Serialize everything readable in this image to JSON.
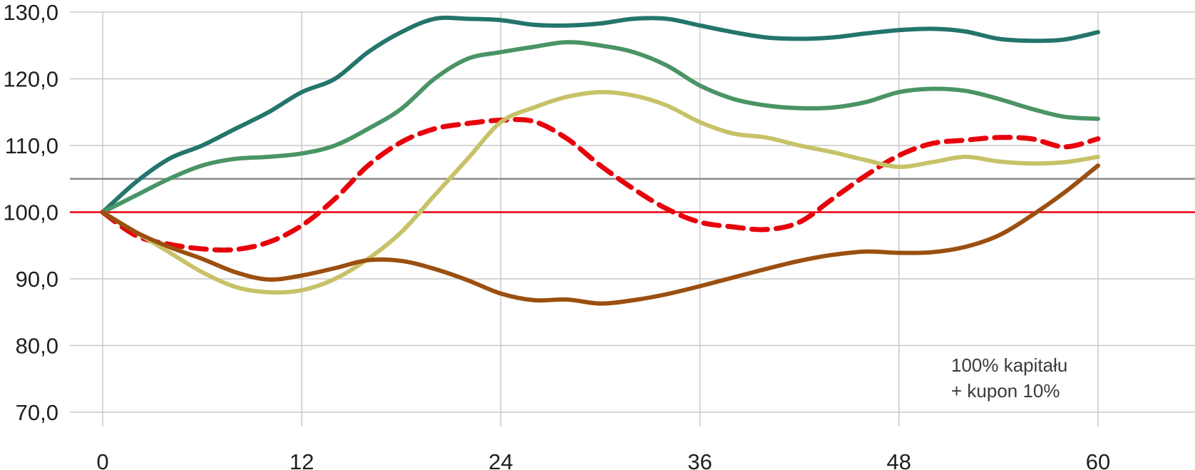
{
  "chart_data": {
    "type": "line",
    "title": "",
    "xlabel": "",
    "ylabel": "",
    "xlim": [
      0,
      65
    ],
    "ylim": [
      70,
      130
    ],
    "x_ticks": [
      0,
      12,
      24,
      36,
      48,
      60
    ],
    "y_ticks": [
      {
        "value": 70,
        "label": "70,0"
      },
      {
        "value": 80,
        "label": "80,0"
      },
      {
        "value": 90,
        "label": "90,0"
      },
      {
        "value": 100,
        "label": "100,0"
      },
      {
        "value": 110,
        "label": "110,0"
      },
      {
        "value": 120,
        "label": "120,0"
      },
      {
        "value": 130,
        "label": "130,0"
      }
    ],
    "grid": true,
    "reference_lines": [
      {
        "value": 100,
        "color": "#e8000b"
      },
      {
        "value": 105,
        "color": "#8c8c8c"
      }
    ],
    "annotation": [
      "100% kapitału",
      "+ kupon 10%"
    ],
    "series": [
      {
        "color": "#24756b",
        "dashed": false,
        "points": [
          [
            0,
            100
          ],
          [
            2,
            104.5
          ],
          [
            4,
            108
          ],
          [
            6,
            110
          ],
          [
            8,
            112.5
          ],
          [
            10,
            115
          ],
          [
            12,
            118
          ],
          [
            14,
            120
          ],
          [
            16,
            124
          ],
          [
            18,
            127
          ],
          [
            20,
            129
          ],
          [
            22,
            129
          ],
          [
            24,
            128.8
          ],
          [
            26,
            128.1
          ],
          [
            28,
            128
          ],
          [
            30,
            128.3
          ],
          [
            32,
            129
          ],
          [
            34,
            129
          ],
          [
            36,
            128
          ],
          [
            38,
            127
          ],
          [
            40,
            126.2
          ],
          [
            42,
            126
          ],
          [
            44,
            126.2
          ],
          [
            46,
            126.8
          ],
          [
            48,
            127.3
          ],
          [
            50,
            127.5
          ],
          [
            52,
            127.1
          ],
          [
            54,
            126
          ],
          [
            56,
            125.7
          ],
          [
            58,
            125.9
          ],
          [
            60,
            127
          ]
        ]
      },
      {
        "color": "#4a9465",
        "dashed": false,
        "points": [
          [
            0,
            100
          ],
          [
            2,
            102.5
          ],
          [
            4,
            105
          ],
          [
            6,
            107
          ],
          [
            8,
            108
          ],
          [
            10,
            108.3
          ],
          [
            12,
            108.8
          ],
          [
            14,
            110
          ],
          [
            16,
            112.5
          ],
          [
            18,
            115.5
          ],
          [
            20,
            120
          ],
          [
            22,
            123
          ],
          [
            24,
            124
          ],
          [
            26,
            124.8
          ],
          [
            28,
            125.5
          ],
          [
            30,
            125
          ],
          [
            32,
            124
          ],
          [
            34,
            122
          ],
          [
            36,
            119
          ],
          [
            38,
            117
          ],
          [
            40,
            116
          ],
          [
            42,
            115.6
          ],
          [
            44,
            115.7
          ],
          [
            46,
            116.5
          ],
          [
            48,
            118
          ],
          [
            50,
            118.5
          ],
          [
            52,
            118.2
          ],
          [
            54,
            117
          ],
          [
            56,
            115.5
          ],
          [
            58,
            114.3
          ],
          [
            60,
            114
          ]
        ]
      },
      {
        "color": "#e8000b",
        "dashed": true,
        "points": [
          [
            0,
            100
          ],
          [
            2,
            96.5
          ],
          [
            4,
            95.2
          ],
          [
            6,
            94.5
          ],
          [
            8,
            94.4
          ],
          [
            10,
            95.5
          ],
          [
            12,
            98
          ],
          [
            14,
            102
          ],
          [
            16,
            107
          ],
          [
            18,
            110.5
          ],
          [
            20,
            112.5
          ],
          [
            22,
            113.3
          ],
          [
            24,
            113.8
          ],
          [
            26,
            113.6
          ],
          [
            28,
            111
          ],
          [
            30,
            107
          ],
          [
            32,
            103.5
          ],
          [
            34,
            100.5
          ],
          [
            36,
            98.5
          ],
          [
            38,
            97.8
          ],
          [
            40,
            97.4
          ],
          [
            42,
            98.5
          ],
          [
            44,
            102
          ],
          [
            46,
            105.5
          ],
          [
            48,
            108.5
          ],
          [
            50,
            110.3
          ],
          [
            52,
            110.8
          ],
          [
            54,
            111.2
          ],
          [
            56,
            111
          ],
          [
            58,
            109.8
          ],
          [
            60,
            111
          ]
        ]
      },
      {
        "color": "#c7c268",
        "dashed": false,
        "points": [
          [
            0,
            100
          ],
          [
            2,
            97
          ],
          [
            4,
            94
          ],
          [
            6,
            91
          ],
          [
            8,
            88.8
          ],
          [
            10,
            88
          ],
          [
            12,
            88.3
          ],
          [
            14,
            90
          ],
          [
            16,
            93
          ],
          [
            18,
            97
          ],
          [
            20,
            102.5
          ],
          [
            22,
            108
          ],
          [
            24,
            113.5
          ],
          [
            26,
            115.7
          ],
          [
            28,
            117.3
          ],
          [
            30,
            118
          ],
          [
            32,
            117.5
          ],
          [
            34,
            116
          ],
          [
            36,
            113.5
          ],
          [
            38,
            111.8
          ],
          [
            40,
            111.2
          ],
          [
            42,
            110
          ],
          [
            44,
            109
          ],
          [
            46,
            107.8
          ],
          [
            48,
            106.8
          ],
          [
            50,
            107.5
          ],
          [
            52,
            108.3
          ],
          [
            54,
            107.6
          ],
          [
            56,
            107.3
          ],
          [
            58,
            107.5
          ],
          [
            60,
            108.3
          ]
        ]
      },
      {
        "color": "#9b4f10",
        "dashed": false,
        "points": [
          [
            0,
            100
          ],
          [
            2,
            97
          ],
          [
            4,
            94.8
          ],
          [
            6,
            93
          ],
          [
            8,
            91
          ],
          [
            10,
            89.9
          ],
          [
            12,
            90.5
          ],
          [
            14,
            91.6
          ],
          [
            16,
            92.8
          ],
          [
            18,
            92.7
          ],
          [
            20,
            91.5
          ],
          [
            22,
            89.8
          ],
          [
            24,
            87.8
          ],
          [
            26,
            86.8
          ],
          [
            28,
            86.9
          ],
          [
            30,
            86.3
          ],
          [
            32,
            86.8
          ],
          [
            34,
            87.7
          ],
          [
            36,
            88.9
          ],
          [
            38,
            90.2
          ],
          [
            40,
            91.5
          ],
          [
            42,
            92.7
          ],
          [
            44,
            93.6
          ],
          [
            46,
            94.1
          ],
          [
            48,
            93.9
          ],
          [
            50,
            94
          ],
          [
            52,
            94.8
          ],
          [
            54,
            96.5
          ],
          [
            56,
            99.5
          ],
          [
            58,
            103
          ],
          [
            60,
            107
          ]
        ]
      }
    ]
  }
}
